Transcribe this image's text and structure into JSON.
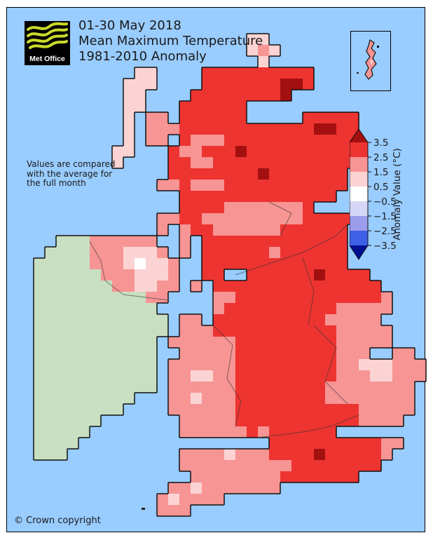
{
  "header": {
    "logo_text": "Met Office",
    "line1": "01-30 May 2018",
    "line2": "Mean Maximum Temperature",
    "line3": "1981-2010 Anomaly"
  },
  "note": {
    "line1": "Values are compared",
    "line2": "with the average for",
    "line3": "the full month"
  },
  "footer": {
    "copyright": "© Crown copyright"
  },
  "legend": {
    "title": "Anomaly Value (°C)",
    "ticks": [
      "3.5",
      "2.5",
      "1.5",
      "0.5",
      "−0.5",
      "−1.5",
      "−2.5",
      "−3.5"
    ],
    "band_colors": [
      "#ED3431",
      "#F79494",
      "#FBD3D3",
      "#FFFFFF",
      "#D6D6F6",
      "#9C9CEC",
      "#3D60E6"
    ],
    "arrow_top_color": "#A31010",
    "arrow_bottom_color": "#001091",
    "outline_color": "#111111"
  },
  "map": {
    "sea_color": "#99CCFF",
    "coast_color": "#111111",
    "cell": 16,
    "palette": {
      "G": "#C9DFC2",
      "p": "#FBD3D3",
      "r": "#F79494",
      "R": "#ED3431",
      "D": "#A31010",
      "w": "#FFFFFF"
    },
    "legend_meaning": {
      "G": "no data (Republic of Ireland)",
      "p": "0.5 to 1.5",
      "r": "1.5 to 2.5",
      "R": "2.5 to 3.5",
      "D": "above 3.5",
      "w": "-0.5 to 0.5"
    },
    "grid": [
      ".......................................",
      ".......................................",
      ".......................................",
      "......................pp...............",
      "......................prp..............",
      ".......................p...............",
      "............pp....RRRRRRRRRR...........",
      "...........ppp....RRRRRRRDDR...........",
      "...........pp....RRRRRRRRD.............",
      "...........pp...RRRRRR.................",
      "...........p.rr.RRRRRR.....RRRRR.......",
      "...........p.rrrRRRRRRRRRRRRDDRR.......",
      "...........p.rr.RrrrRRRRRRRRRRRR.......",
      "..........pp...RrrRRRDRRRRRRRRRR.......",
      "..........p....RRrrRRRRRRRRRRRRR.......",
      "...............RRRRRRRRDRRRRRRR........",
      "..............rrRrrrRRRRRRRRRRR........",
      "................RRRRRRRRRRRRRR.........",
      "................RRRRrrrrrrrR...........",
      "..............rrRRrrrrrrrrrRRRRR.......",
      "..............r.rRRrrrrrrRRRRRR........",
      ".....GGGrrrrrr..r.RRRRRRRRRRRRR........",
      "....GGGGrrrpppr.r.RRRRRRrRRRRRR........",
      "...GGGGGrrrpwppr..RRRRRRRRRRRRR........",
      "...GGGGGGrrrpppr..RR..RRRRRRDRRRR......",
      "...GGGGGGGrrpprr.r.RRRRRRRRRRRRRRR.....",
      "...GGGGGGGGGGrr....rrRRRRRRRRRRRRRr....",
      "...GGGGGGGGGGG.....rRRRRRRRRRRrrrrr....",
      "...GGGGGGGGGGGG.rr.RRRRRRRRRRrrrrr.....",
      "...GGGGGGGGGGGG.rrrRRRRRRRRRRRrrrrr....",
      "...GGGGGGGGGGG.rrrrrrRRRRRRRRRrrrrr....",
      "...GGGGGGGGGGG..rrrrrRRRRRRRRRrrr..rr..",
      "...GGGGGGGGGGG.rrrrrrRRRRRRRRRrrppprrr.",
      "...GGGGGGGGGGG.rrpprrRRRRRRRRRrrrpprrr.",
      "...GGGGGGGGGGG.rrrrrrRRRRRRRRrrrrrrrr..",
      "...GGGGGGGGG...rrprrrRRRRRRRRrrrrrrrr..",
      "...GGGGGGGG....rrrrrrRRRRRRRRRRRrrrrr..",
      "...GGGGGG.......rrrrrRRRRRRRRRRRrrrr...",
      "...GGGGG........rrrrrrRrRRRRRR.........",
      "...GGGG.................RRRRRRRRRRrr...",
      "...GGG..........rrrrprrrRRRRDRRRRRr....",
      "................rrrrrrrrrrRRRRRRRR.....",
      ".................rrrrrrrrRRRRRRR.......",
      "...............rrprrrrrrr..............",
      "..............rprrrr...................",
      "..............rrr......................",
      ".......................................",
      "......................................."
    ]
  }
}
